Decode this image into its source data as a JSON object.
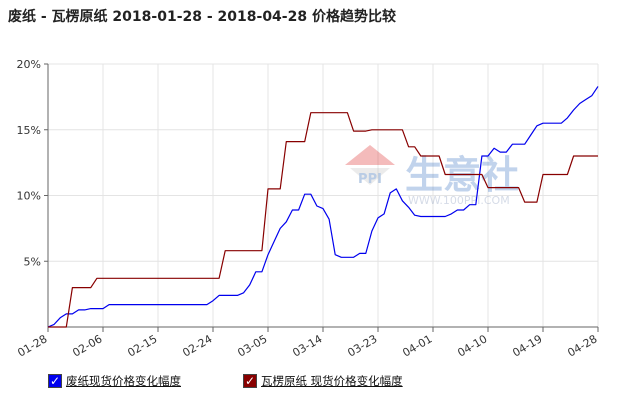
{
  "title": "废纸 - 瓦楞原纸 2018-01-28 - 2018-04-28 价格趋势比较",
  "watermark": {
    "logo_text": "PPI",
    "brand": "生意社",
    "url": "WWW.100PPI.COM"
  },
  "legend": {
    "items": [
      {
        "label": "废纸现货价格变化幅度",
        "check": "✓"
      },
      {
        "label": "瓦楞原纸 现货价格变化幅度",
        "check": "✓"
      }
    ]
  },
  "chart_data": {
    "type": "line",
    "title": "废纸 - 瓦楞原纸 2018-01-28 - 2018-04-28 价格趋势比较",
    "xlabel": "",
    "ylabel": "",
    "x_range": [
      0,
      90
    ],
    "x_ticks": [
      {
        "x": 0,
        "label": "01-28"
      },
      {
        "x": 9,
        "label": "02-06"
      },
      {
        "x": 18,
        "label": "02-15"
      },
      {
        "x": 27,
        "label": "02-24"
      },
      {
        "x": 36,
        "label": "03-05"
      },
      {
        "x": 45,
        "label": "03-14"
      },
      {
        "x": 54,
        "label": "03-23"
      },
      {
        "x": 63,
        "label": "04-01"
      },
      {
        "x": 72,
        "label": "04-10"
      },
      {
        "x": 81,
        "label": "04-19"
      },
      {
        "x": 90,
        "label": "04-28"
      }
    ],
    "ylim": [
      0,
      20
    ],
    "y_ticks": [
      {
        "v": 5,
        "label": "5%"
      },
      {
        "v": 10,
        "label": "10%"
      },
      {
        "v": 15,
        "label": "15%"
      },
      {
        "v": 20,
        "label": "20%"
      }
    ],
    "grid": true,
    "legend_position": "bottom",
    "series": [
      {
        "name": "废纸现货价格变化幅度",
        "color": "#0000ee",
        "step": false,
        "points": [
          [
            0,
            0
          ],
          [
            1,
            0.2
          ],
          [
            2,
            0.7
          ],
          [
            3,
            1
          ],
          [
            4,
            1
          ],
          [
            5,
            1.3
          ],
          [
            6,
            1.3
          ],
          [
            7,
            1.4
          ],
          [
            8,
            1.4
          ],
          [
            9,
            1.4
          ],
          [
            10,
            1.7
          ],
          [
            11,
            1.7
          ],
          [
            26,
            1.7
          ],
          [
            27,
            2
          ],
          [
            28,
            2.4
          ],
          [
            31,
            2.4
          ],
          [
            32,
            2.6
          ],
          [
            33,
            3.2
          ],
          [
            34,
            4.2
          ],
          [
            35,
            4.2
          ],
          [
            36,
            5.5
          ],
          [
            37,
            6.5
          ],
          [
            38,
            7.5
          ],
          [
            39,
            8
          ],
          [
            40,
            8.9
          ],
          [
            41,
            8.9
          ],
          [
            42,
            10.1
          ],
          [
            43,
            10.1
          ],
          [
            44,
            9.2
          ],
          [
            45,
            9
          ],
          [
            46,
            8.2
          ],
          [
            47,
            5.5
          ],
          [
            48,
            5.3
          ],
          [
            49,
            5.3
          ],
          [
            50,
            5.3
          ],
          [
            51,
            5.6
          ],
          [
            52,
            5.6
          ],
          [
            53,
            7.3
          ],
          [
            54,
            8.3
          ],
          [
            55,
            8.6
          ],
          [
            56,
            10.2
          ],
          [
            57,
            10.5
          ],
          [
            58,
            9.6
          ],
          [
            59,
            9.1
          ],
          [
            60,
            8.5
          ],
          [
            61,
            8.4
          ],
          [
            62,
            8.4
          ],
          [
            65,
            8.4
          ],
          [
            66,
            8.6
          ],
          [
            67,
            8.9
          ],
          [
            68,
            8.9
          ],
          [
            69,
            9.3
          ],
          [
            70,
            9.3
          ],
          [
            71,
            13
          ],
          [
            72,
            13
          ],
          [
            73,
            13.6
          ],
          [
            74,
            13.3
          ],
          [
            75,
            13.3
          ],
          [
            76,
            13.9
          ],
          [
            77,
            13.9
          ],
          [
            78,
            13.9
          ],
          [
            79,
            14.6
          ],
          [
            80,
            15.3
          ],
          [
            81,
            15.5
          ],
          [
            84,
            15.5
          ],
          [
            85,
            15.9
          ],
          [
            86,
            16.5
          ],
          [
            87,
            17
          ],
          [
            88,
            17.3
          ],
          [
            89,
            17.6
          ],
          [
            90,
            18.3
          ]
        ]
      },
      {
        "name": "瓦楞原纸 现货价格变化幅度",
        "color": "#880000",
        "step": false,
        "points": [
          [
            0,
            0
          ],
          [
            3,
            0
          ],
          [
            4,
            3
          ],
          [
            7,
            3
          ],
          [
            8,
            3.7
          ],
          [
            28,
            3.7
          ],
          [
            29,
            5.8
          ],
          [
            35,
            5.8
          ],
          [
            36,
            10.5
          ],
          [
            38,
            10.5
          ],
          [
            39,
            14.1
          ],
          [
            42,
            14.1
          ],
          [
            43,
            16.3
          ],
          [
            49,
            16.3
          ],
          [
            50,
            14.9
          ],
          [
            52,
            14.9
          ],
          [
            53,
            15
          ],
          [
            58,
            15
          ],
          [
            59,
            13.7
          ],
          [
            60,
            13.7
          ],
          [
            61,
            13
          ],
          [
            64,
            13
          ],
          [
            65,
            11.6
          ],
          [
            71,
            11.6
          ],
          [
            72,
            10.6
          ],
          [
            77,
            10.6
          ],
          [
            78,
            9.5
          ],
          [
            80,
            9.5
          ],
          [
            81,
            11.6
          ],
          [
            85,
            11.6
          ],
          [
            86,
            13
          ],
          [
            90,
            13
          ]
        ]
      }
    ]
  }
}
